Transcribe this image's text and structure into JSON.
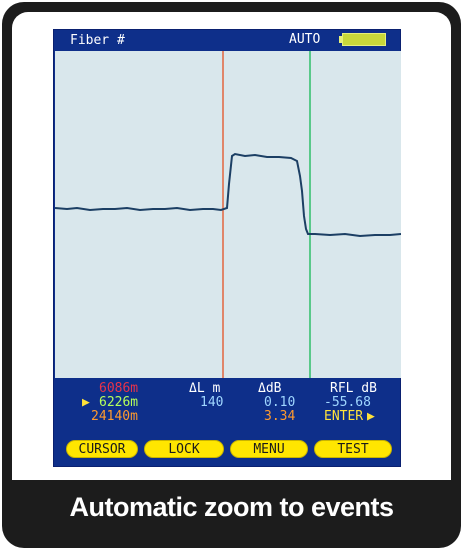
{
  "status_bar": {
    "fiber_label": "Fiber #",
    "mode": "AUTO"
  },
  "trace": {
    "trace_color": "#1c3f64",
    "cursor_a_color": "#e2663e",
    "cursor_b_color": "#2fbf6a"
  },
  "readout": {
    "headers": {
      "delta_l": "ΔL m",
      "delta_db": "ΔdB",
      "rfl_db": "RFL dB"
    },
    "row1": {
      "position": "6086m"
    },
    "row2": {
      "position": "6226m",
      "delta_l": "140",
      "delta_db": "0.10",
      "rfl_db": "-55.68"
    },
    "row3": {
      "position": "24140m",
      "delta_db": "3.34",
      "enter_label": "ENTER"
    },
    "colors": {
      "row1": "#e8334a",
      "row2": "#b6ff5a",
      "row3": "#ff9a2e",
      "accent": "#ffe23a"
    }
  },
  "softkeys": {
    "cursor": "CURSOR",
    "lock": "LOCK",
    "menu": "MENU",
    "test": "TEST"
  },
  "caption": "Automatic zoom to events"
}
